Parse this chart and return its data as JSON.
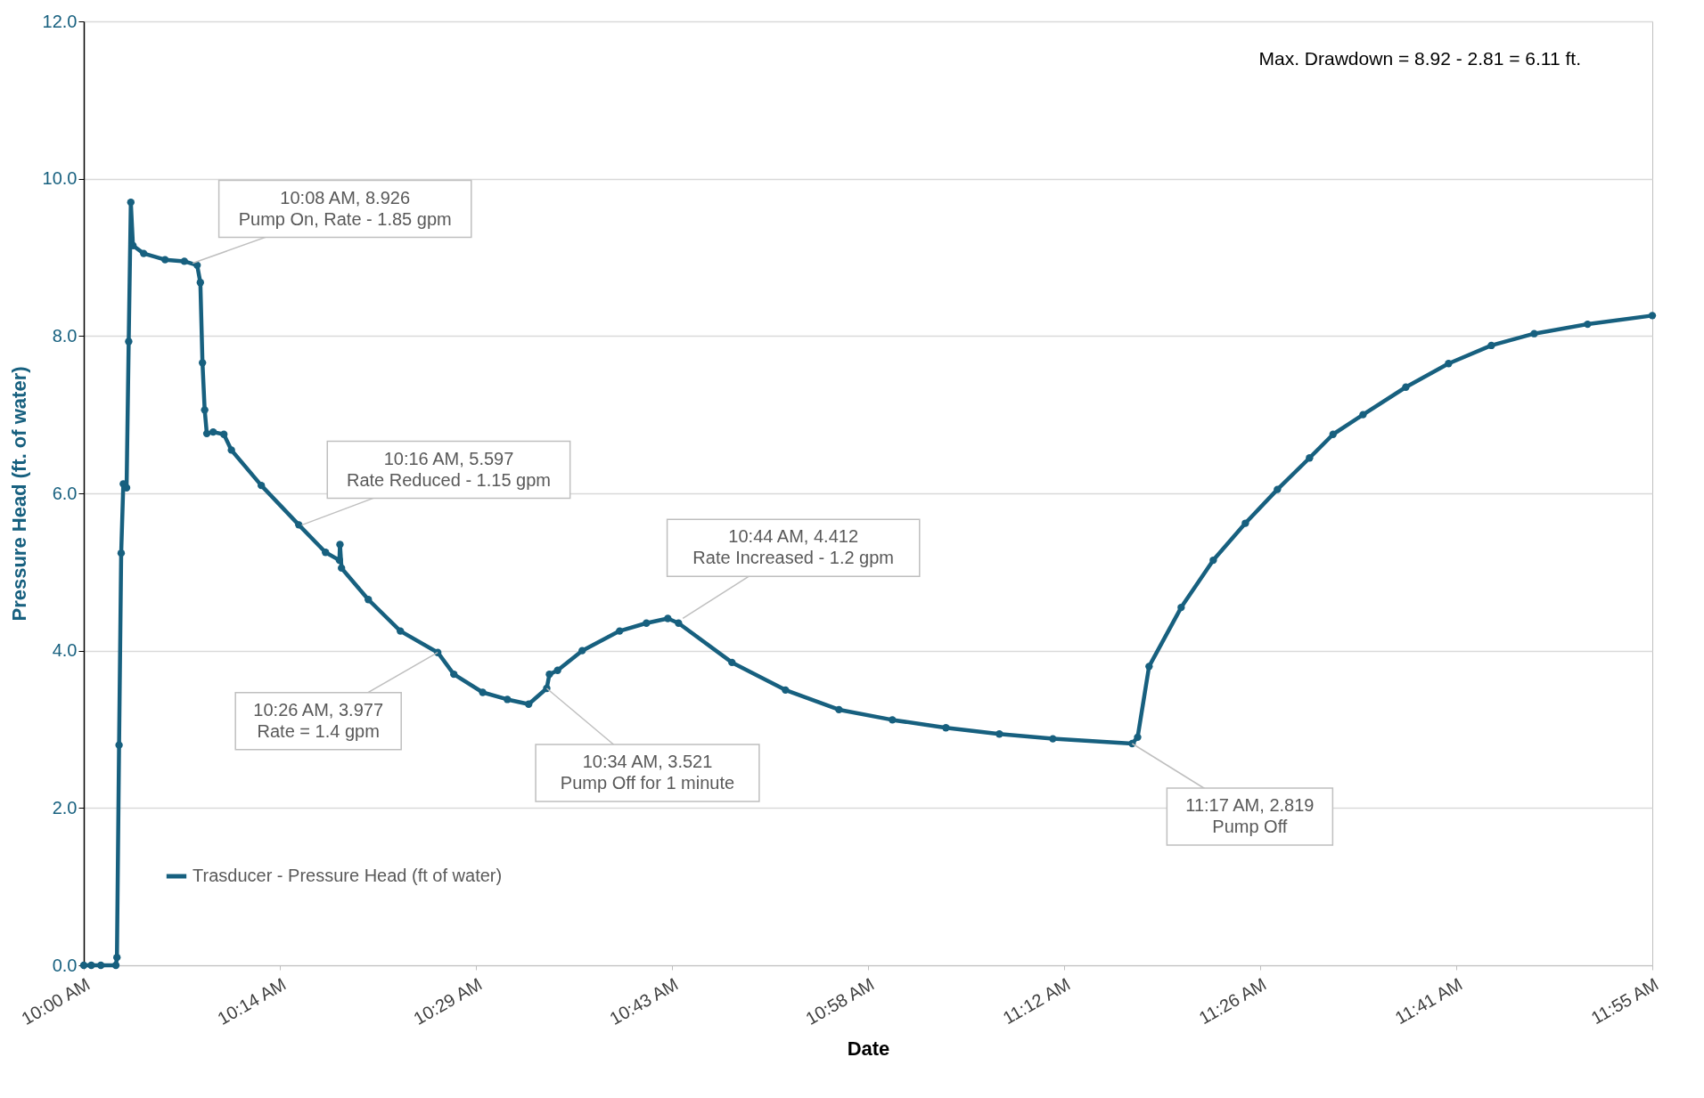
{
  "chart_data": {
    "type": "line",
    "xlabel": "Date",
    "ylabel": "Pressure Head (ft. of water)",
    "xlim": [
      10,
      11.92
    ],
    "xticks": [
      {
        "value": 10,
        "label": "10:00 AM"
      },
      {
        "value": 10.24,
        "label": "10:14 AM"
      },
      {
        "value": 10.48,
        "label": "10:29 AM"
      },
      {
        "value": 10.72,
        "label": "10:43 AM"
      },
      {
        "value": 10.96,
        "label": "10:58 AM"
      },
      {
        "value": 11.2,
        "label": "11:12 AM"
      },
      {
        "value": 11.44,
        "label": "11:26 AM"
      },
      {
        "value": 11.68,
        "label": "11:41 AM"
      },
      {
        "value": 11.92,
        "label": "11:55 AM"
      }
    ],
    "ylim": [
      0,
      12
    ],
    "yticks": [
      {
        "value": 0,
        "label": "0.0"
      },
      {
        "value": 2,
        "label": "2.0"
      },
      {
        "value": 4,
        "label": "4.0"
      },
      {
        "value": 6,
        "label": "6.0"
      },
      {
        "value": 8,
        "label": "8.0"
      },
      {
        "value": 10,
        "label": "10.0"
      },
      {
        "value": 12,
        "label": "12.0"
      }
    ],
    "grid": "y",
    "legend": "bottom left",
    "marker": "circle",
    "line_style": "solid",
    "series": [
      {
        "name": "Trasducer - Pressure Head (ft of water)",
        "color": "#17607f",
        "x": [
          10,
          10.0092,
          10.0209,
          10.0393,
          10.0406,
          10.0432,
          10.0458,
          10.0484,
          10.0524,
          10.055,
          10.0576,
          10.0602,
          10.0733,
          10.0995,
          10.1231,
          10.1388,
          10.1427,
          10.1453,
          10.148,
          10.1506,
          10.1584,
          10.1715,
          10.1807,
          10.2173,
          10.2632,
          10.2959,
          10.3129,
          10.3136,
          10.3155,
          10.3483,
          10.3875,
          10.4333,
          10.453,
          10.4883,
          10.5185,
          10.5446,
          10.5667,
          10.57,
          10.58,
          10.6101,
          10.6559,
          10.6887,
          10.7149,
          10.728,
          10.7934,
          10.8589,
          10.9244,
          10.9898,
          11.0553,
          11.1207,
          11.1862,
          11.2833,
          11.29,
          11.304,
          11.3433,
          11.3826,
          11.4219,
          11.4611,
          11.5004,
          11.5292,
          11.5659,
          11.6183,
          11.6706,
          11.723,
          11.7754,
          11.8408,
          11.92
        ],
        "values": [
          0,
          0,
          0,
          0,
          0.1,
          2.8,
          5.24,
          6.12,
          6.07,
          7.93,
          9.7,
          9.15,
          9.05,
          8.97,
          8.95,
          8.9,
          8.68,
          7.66,
          7.06,
          6.76,
          6.78,
          6.75,
          6.55,
          6.1,
          5.6,
          5.25,
          5.15,
          5.35,
          5.05,
          4.65,
          4.25,
          3.977,
          3.7,
          3.47,
          3.38,
          3.32,
          3.521,
          3.7,
          3.75,
          4.0,
          4.25,
          4.35,
          4.41,
          4.35,
          3.85,
          3.5,
          3.25,
          3.12,
          3.02,
          2.94,
          2.88,
          2.819,
          2.9,
          3.8,
          4.55,
          5.15,
          5.62,
          6.05,
          6.45,
          6.75,
          7.0,
          7.35,
          7.65,
          7.88,
          8.03,
          8.15,
          8.26
        ]
      }
    ],
    "annotations": [
      {
        "text": "10:08 AM, 8.926\nPump On, Rate - 1.85 gpm",
        "x": 10.1333,
        "y": 8.926
      },
      {
        "text": "10:16 AM, 5.597\nRate Reduced - 1.15 gpm",
        "x": 10.2667,
        "y": 5.597
      },
      {
        "text": "10:26 AM, 3.977\nRate = 1.4 gpm",
        "x": 10.4333,
        "y": 3.977
      },
      {
        "text": "10:34 AM, 3.521\nPump Off for 1 minute",
        "x": 10.5667,
        "y": 3.521
      },
      {
        "text": "10:44 AM, 4.412\nRate Increased - 1.2 gpm",
        "x": 10.7333,
        "y": 4.412
      },
      {
        "text": "11:17 AM, 2.819\nPump Off",
        "x": 11.2833,
        "y": 2.819
      },
      "Max. Drawdown = 8.92 - 2.81 = 6.11 ft."
    ]
  }
}
